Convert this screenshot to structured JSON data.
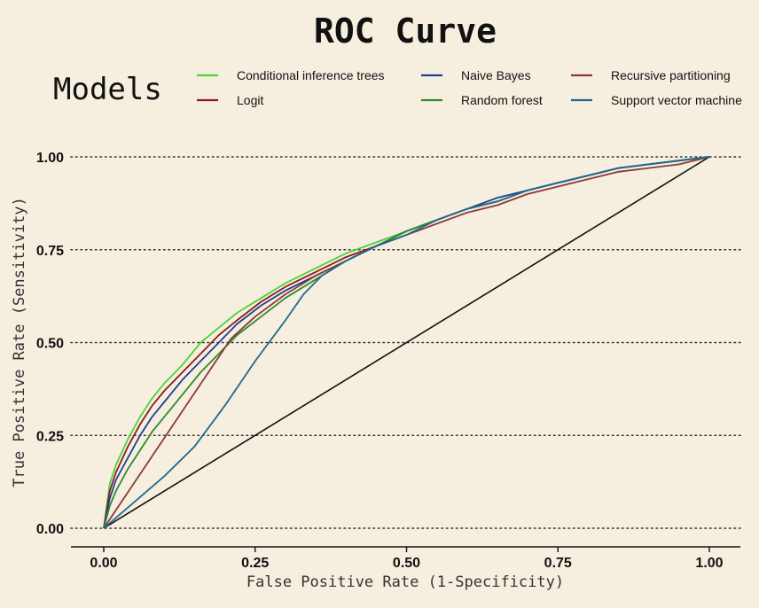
{
  "chart_data": {
    "type": "line",
    "title": "ROC Curve",
    "xlabel": "False Positive Rate (1-Specificity)",
    "ylabel": "True Positive Rate (Sensitivity)",
    "xlim": [
      0,
      1
    ],
    "ylim": [
      0,
      1
    ],
    "x_ticks": [
      0,
      0.25,
      0.5,
      0.75,
      1
    ],
    "x_tick_labels": [
      "0.00",
      "0.25",
      "0.50",
      "0.75",
      "1.00"
    ],
    "y_ticks": [
      0,
      0.25,
      0.5,
      0.75,
      1
    ],
    "y_tick_labels": [
      "0.00",
      "0.25",
      "0.50",
      "0.75",
      "1.00"
    ],
    "grid": "horizontal dotted",
    "legend": {
      "title": "Models",
      "position": "top",
      "entries": [
        "Conditional inference trees",
        "Logit",
        "Naive Bayes",
        "Random forest",
        "Recursive partitioning",
        "Support vector machine"
      ]
    },
    "reference_line": {
      "x": [
        0,
        1
      ],
      "y": [
        0,
        1
      ],
      "color": "#111111"
    },
    "series": [
      {
        "name": "Conditional inference trees",
        "color": "#4fd23c",
        "x": [
          0,
          0.01,
          0.02,
          0.04,
          0.06,
          0.08,
          0.1,
          0.13,
          0.16,
          0.19,
          0.22,
          0.26,
          0.3,
          0.35,
          0.4,
          0.45,
          0.5,
          0.55,
          0.6,
          0.65,
          0.7,
          0.75,
          0.8,
          0.85,
          0.9,
          0.95,
          1.0
        ],
        "y": [
          0,
          0.12,
          0.17,
          0.24,
          0.3,
          0.35,
          0.39,
          0.44,
          0.5,
          0.54,
          0.58,
          0.62,
          0.66,
          0.7,
          0.74,
          0.77,
          0.8,
          0.83,
          0.86,
          0.88,
          0.91,
          0.93,
          0.95,
          0.97,
          0.98,
          0.99,
          1.0
        ]
      },
      {
        "name": "Logit",
        "color": "#8b1c1c",
        "x": [
          0,
          0.01,
          0.02,
          0.04,
          0.06,
          0.08,
          0.1,
          0.13,
          0.16,
          0.19,
          0.22,
          0.26,
          0.3,
          0.35,
          0.4,
          0.45,
          0.5,
          0.55,
          0.6,
          0.65,
          0.7,
          0.75,
          0.8,
          0.85,
          0.9,
          0.95,
          1.0
        ],
        "y": [
          0,
          0.1,
          0.15,
          0.22,
          0.28,
          0.33,
          0.37,
          0.42,
          0.47,
          0.52,
          0.56,
          0.61,
          0.65,
          0.69,
          0.73,
          0.76,
          0.8,
          0.83,
          0.86,
          0.88,
          0.91,
          0.93,
          0.95,
          0.97,
          0.98,
          0.99,
          1.0
        ]
      },
      {
        "name": "Naive Bayes",
        "color": "#1f3f8f",
        "x": [
          0,
          0.01,
          0.02,
          0.04,
          0.06,
          0.08,
          0.1,
          0.13,
          0.16,
          0.19,
          0.22,
          0.26,
          0.3,
          0.35,
          0.4,
          0.45,
          0.5,
          0.55,
          0.6,
          0.65,
          0.7,
          0.75,
          0.8,
          0.85,
          0.9,
          0.95,
          1.0
        ],
        "y": [
          0,
          0.08,
          0.13,
          0.19,
          0.25,
          0.3,
          0.34,
          0.4,
          0.45,
          0.5,
          0.55,
          0.6,
          0.64,
          0.68,
          0.72,
          0.76,
          0.8,
          0.83,
          0.86,
          0.89,
          0.91,
          0.93,
          0.95,
          0.97,
          0.98,
          0.99,
          1.0
        ]
      },
      {
        "name": "Random forest",
        "color": "#2f8a2f",
        "x": [
          0,
          0.01,
          0.02,
          0.04,
          0.06,
          0.08,
          0.1,
          0.13,
          0.16,
          0.19,
          0.22,
          0.26,
          0.3,
          0.35,
          0.4,
          0.45,
          0.5,
          0.55,
          0.6,
          0.65,
          0.7,
          0.75,
          0.8,
          0.85,
          0.9,
          0.95,
          1.0
        ],
        "y": [
          0,
          0.06,
          0.1,
          0.16,
          0.21,
          0.26,
          0.3,
          0.36,
          0.42,
          0.47,
          0.52,
          0.57,
          0.62,
          0.67,
          0.72,
          0.76,
          0.8,
          0.83,
          0.86,
          0.88,
          0.91,
          0.93,
          0.95,
          0.97,
          0.98,
          0.99,
          1.0
        ]
      },
      {
        "name": "Recursive partitioning",
        "color": "#8b3a3a",
        "x": [
          0,
          0.21,
          0.25,
          0.3,
          0.35,
          0.4,
          0.45,
          0.5,
          0.55,
          0.6,
          0.65,
          0.7,
          0.75,
          0.8,
          0.85,
          0.9,
          0.95,
          1.0
        ],
        "y": [
          0,
          0.51,
          0.57,
          0.63,
          0.68,
          0.72,
          0.76,
          0.79,
          0.82,
          0.85,
          0.87,
          0.9,
          0.92,
          0.94,
          0.96,
          0.97,
          0.98,
          1.0
        ]
      },
      {
        "name": "Support vector machine",
        "color": "#1f6a8f",
        "x": [
          0,
          0.05,
          0.1,
          0.15,
          0.2,
          0.25,
          0.3,
          0.33,
          0.36,
          0.4,
          0.45,
          0.5,
          0.55,
          0.6,
          0.65,
          0.7,
          0.75,
          0.8,
          0.85,
          0.9,
          0.95,
          1.0
        ],
        "y": [
          0,
          0.07,
          0.14,
          0.22,
          0.33,
          0.45,
          0.56,
          0.63,
          0.68,
          0.72,
          0.76,
          0.79,
          0.83,
          0.86,
          0.88,
          0.91,
          0.93,
          0.95,
          0.97,
          0.98,
          0.99,
          1.0
        ]
      }
    ]
  }
}
